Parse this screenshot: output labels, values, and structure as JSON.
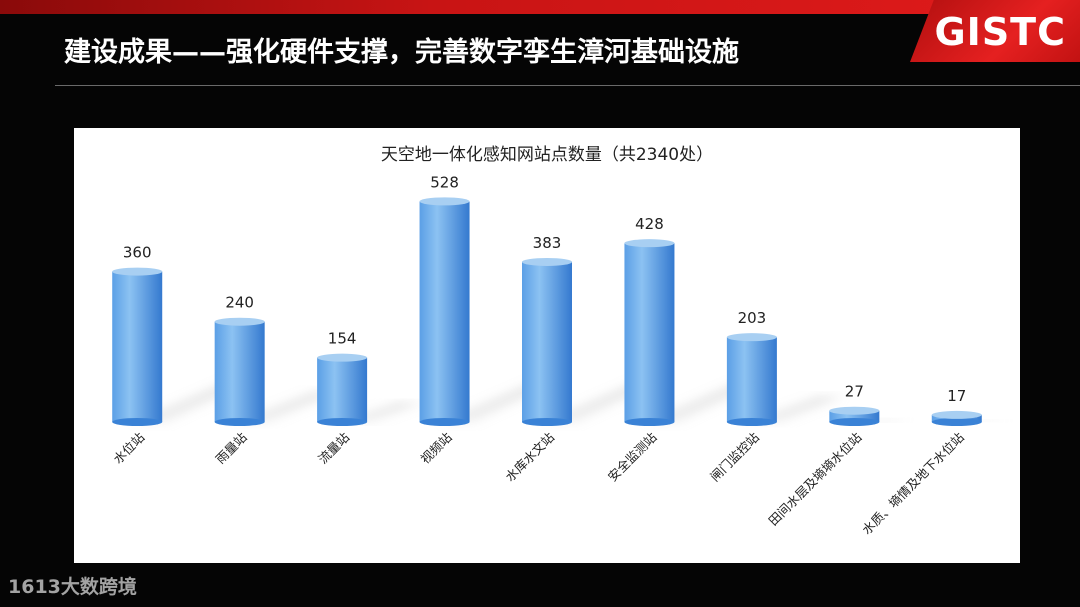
{
  "slide": {
    "title": "建设成果——强化硬件支撑，完善数字孪生漳河基础设施",
    "logo": "GISTC",
    "watermark": "大数跨境",
    "watermark_prefix": "1613"
  },
  "colors": {
    "bar_top": "#a8cff2",
    "bar_body_light": "#74b3ec",
    "bar_body_dark": "#3a82d6",
    "brand_red": "#d81a1a"
  },
  "chart_data": {
    "type": "bar",
    "title": "天空地一体化感知网站点数量（共2340处）",
    "categories": [
      "水位站",
      "雨量站",
      "流量站",
      "视频站",
      "水库水文站",
      "安全监测站",
      "闸门监控站",
      "田间水层及墒墒水位站",
      "水质、墒情及地下水位站"
    ],
    "values": [
      360,
      240,
      154,
      528,
      383,
      428,
      203,
      27,
      17
    ],
    "ylim": [
      0,
      560
    ],
    "grid": false,
    "legend": "none"
  }
}
